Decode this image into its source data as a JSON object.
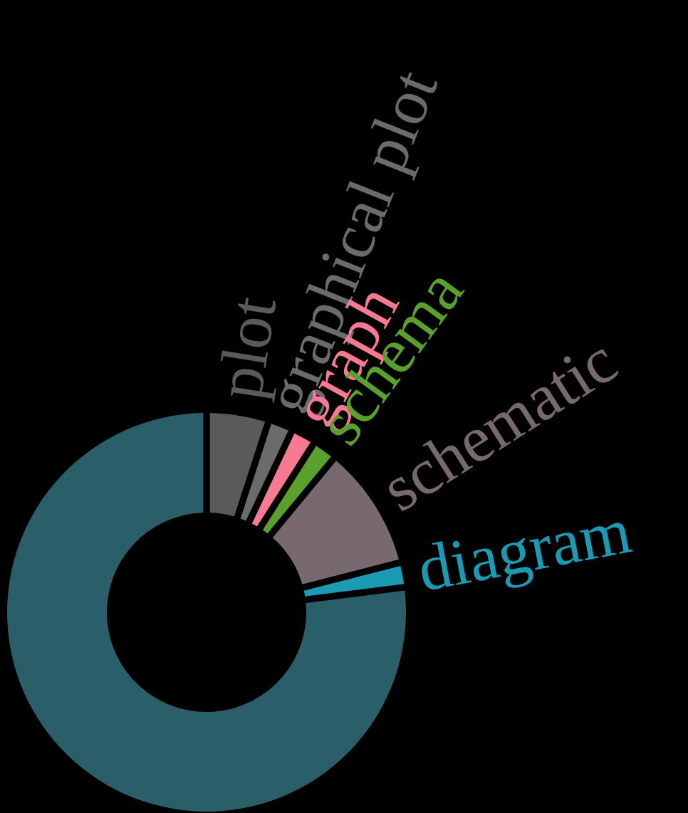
{
  "chart_data": {
    "type": "donut",
    "categories": [
      "plot",
      "graphical plot",
      "graph",
      "schema",
      "schematic",
      "diagram",
      null
    ],
    "values": [
      5,
      2,
      2,
      2,
      10,
      2,
      77
    ],
    "colors": [
      "#5a5a5a",
      "#6b6b6b",
      "#f77a92",
      "#5aa02c",
      "#786870",
      "#1b9ab4",
      "#2a5e69"
    ]
  }
}
